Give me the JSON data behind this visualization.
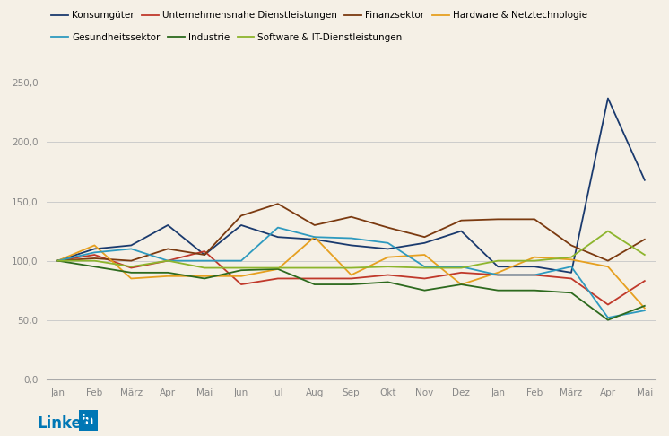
{
  "months": [
    "Jan",
    "Feb",
    "März",
    "Apr",
    "Mai",
    "Jun",
    "Jul",
    "Aug",
    "Sep",
    "Okt",
    "Nov",
    "Dez",
    "Jan",
    "Feb",
    "März",
    "Apr",
    "Mai"
  ],
  "series_order": [
    "Konsumgüter",
    "Unternehmensnahe Dienstleistungen",
    "Finanzsektor",
    "Hardware & Netztechnologie",
    "Gesundheitssektor",
    "Industrie",
    "Software & IT-Dienstleistungen"
  ],
  "series": {
    "Konsumgüter": {
      "color": "#1a3a6e",
      "values": [
        100,
        110,
        113,
        130,
        105,
        130,
        120,
        118,
        113,
        110,
        115,
        125,
        95,
        95,
        90,
        237,
        168
      ]
    },
    "Unternehmensnahe Dienstleistungen": {
      "color": "#c0392b",
      "values": [
        100,
        105,
        94,
        100,
        108,
        80,
        85,
        85,
        85,
        88,
        85,
        90,
        88,
        88,
        85,
        63,
        83
      ]
    },
    "Finanzsektor": {
      "color": "#7b3a10",
      "values": [
        100,
        102,
        100,
        110,
        105,
        138,
        148,
        130,
        137,
        128,
        120,
        134,
        135,
        135,
        113,
        100,
        118
      ]
    },
    "Hardware & Netztechnologie": {
      "color": "#e6a020",
      "values": [
        100,
        113,
        85,
        87,
        87,
        87,
        93,
        120,
        88,
        103,
        105,
        80,
        90,
        103,
        101,
        95,
        60
      ]
    },
    "Gesundheitssektor": {
      "color": "#2e9abf",
      "values": [
        100,
        107,
        110,
        100,
        100,
        100,
        128,
        120,
        119,
        115,
        95,
        95,
        88,
        88,
        95,
        52,
        58
      ]
    },
    "Industrie": {
      "color": "#2d6a1e",
      "values": [
        100,
        95,
        90,
        90,
        85,
        92,
        93,
        80,
        80,
        82,
        75,
        80,
        75,
        75,
        73,
        50,
        62
      ]
    },
    "Software & IT-Dienstleistungen": {
      "color": "#8db52d",
      "values": [
        100,
        100,
        95,
        100,
        94,
        94,
        94,
        94,
        94,
        95,
        94,
        94,
        100,
        100,
        103,
        125,
        105
      ]
    }
  },
  "ylim": [
    0,
    250
  ],
  "yticks": [
    0.0,
    50.0,
    100.0,
    150.0,
    200.0,
    250.0
  ],
  "background_color": "#f5f0e6",
  "grid_color": "#cccccc",
  "tick_fontsize": 7.5,
  "legend_fontsize": 7.5
}
